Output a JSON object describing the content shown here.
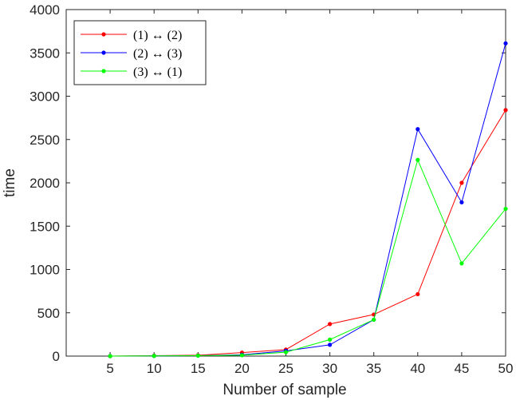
{
  "chart_data": {
    "type": "line",
    "title": "",
    "xlabel": "Number of sample",
    "ylabel": "time",
    "x": [
      5,
      10,
      15,
      20,
      25,
      30,
      35,
      40,
      45,
      50
    ],
    "xlim": [
      0,
      50
    ],
    "ylim": [
      0,
      4000
    ],
    "xticks": [
      5,
      10,
      15,
      20,
      25,
      30,
      35,
      40,
      45,
      50
    ],
    "yticks": [
      0,
      500,
      1000,
      1500,
      2000,
      2500,
      3000,
      3500,
      4000
    ],
    "grid": false,
    "legend_position": "top-left",
    "series": [
      {
        "name": "(1) ↔ (2)",
        "color": "#ff0000",
        "values": [
          0,
          5,
          10,
          40,
          75,
          370,
          480,
          715,
          2000,
          2840
        ]
      },
      {
        "name": "(2) ↔ (3)",
        "color": "#0000ff",
        "values": [
          0,
          2,
          5,
          15,
          60,
          130,
          420,
          2620,
          1775,
          3610
        ]
      },
      {
        "name": "(3) ↔ (1)",
        "color": "#00ff00",
        "values": [
          0,
          2,
          5,
          10,
          45,
          190,
          420,
          2265,
          1070,
          1700
        ]
      }
    ]
  }
}
